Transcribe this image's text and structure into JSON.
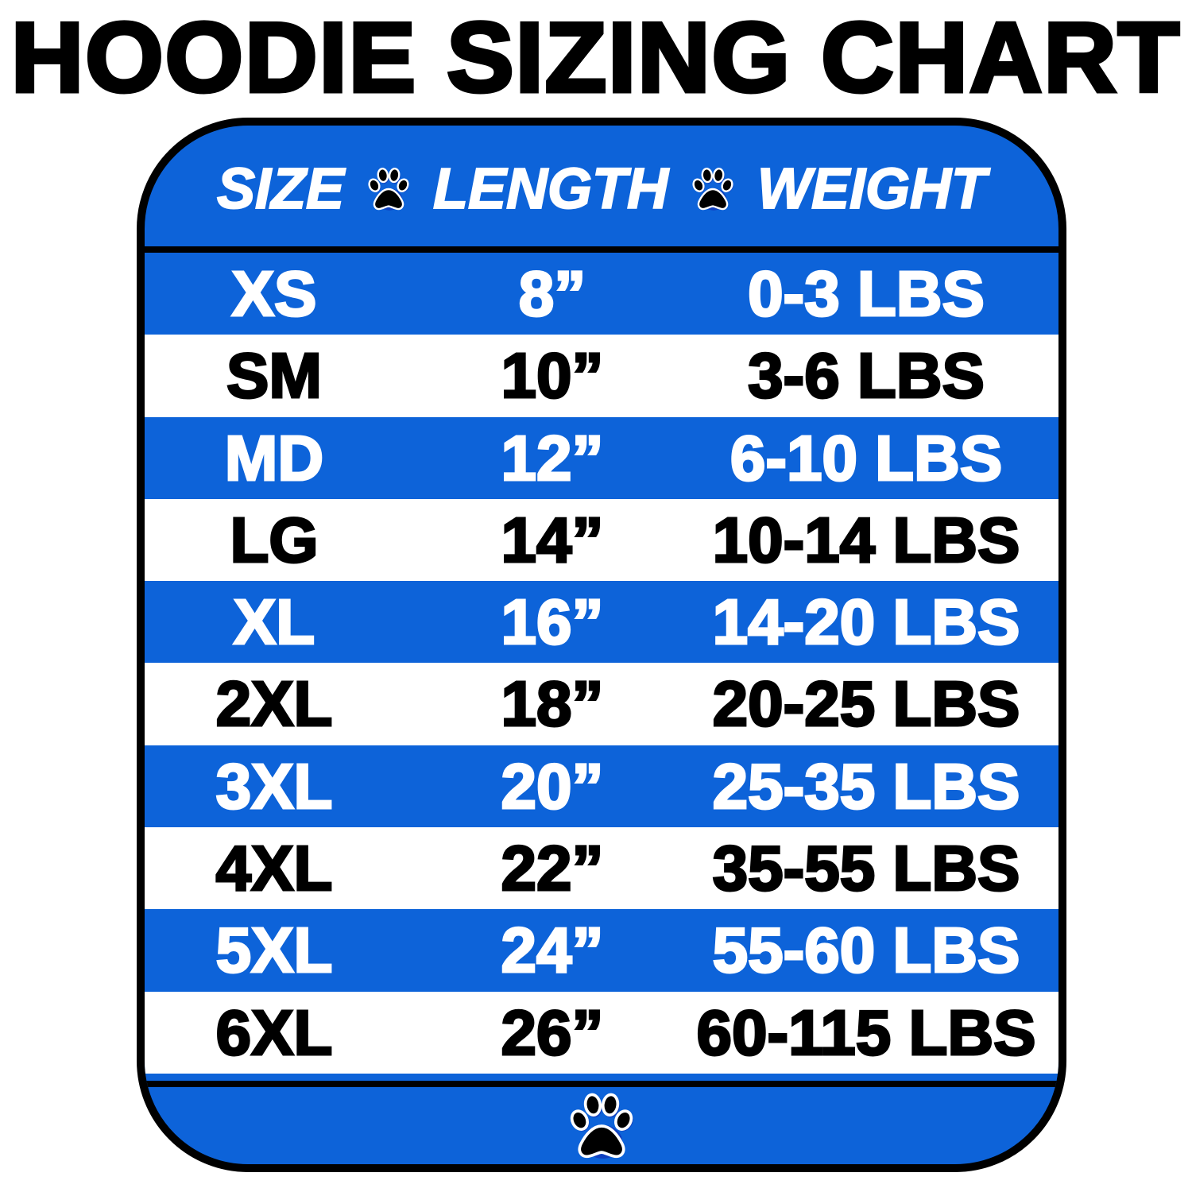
{
  "title": "HOODIE SIZING CHART",
  "colors": {
    "accent_blue": "#0d63d9",
    "text_dark": "#000000",
    "text_light": "#ffffff"
  },
  "header": {
    "col1": "SIZE",
    "col2": "LENGTH",
    "col3": "WEIGHT",
    "separator_icon": "paw-print-icon"
  },
  "rows": [
    {
      "size": "XS",
      "length": "8”",
      "weight": "0-3 LBS"
    },
    {
      "size": "SM",
      "length": "10”",
      "weight": "3-6 LBS"
    },
    {
      "size": "MD",
      "length": "12”",
      "weight": "6-10 LBS"
    },
    {
      "size": "LG",
      "length": "14”",
      "weight": "10-14 LBS"
    },
    {
      "size": "XL",
      "length": "16”",
      "weight": "14-20 LBS"
    },
    {
      "size": "2XL",
      "length": "18”",
      "weight": "20-25 LBS"
    },
    {
      "size": "3XL",
      "length": "20”",
      "weight": "25-35 LBS"
    },
    {
      "size": "4XL",
      "length": "22”",
      "weight": "35-55 LBS"
    },
    {
      "size": "5XL",
      "length": "24”",
      "weight": "55-60 LBS"
    },
    {
      "size": "6XL",
      "length": "26”",
      "weight": "60-115 LBS"
    }
  ],
  "footer": {
    "icon": "paw-print-icon"
  }
}
